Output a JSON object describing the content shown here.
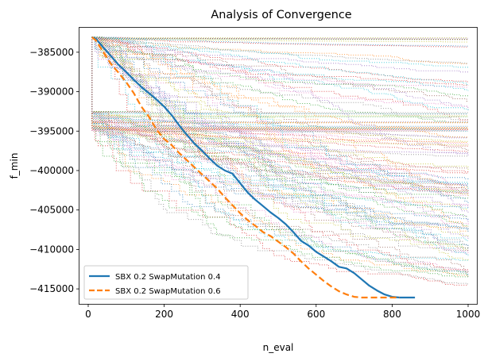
{
  "chart_data": {
    "type": "line",
    "title": "Analysis of Convergence",
    "xlabel": "n_eval",
    "ylabel": "f_min",
    "xlim": [
      -23,
      1023
    ],
    "ylim": [
      -416900,
      -381900
    ],
    "x_ticks": [
      0,
      200,
      400,
      600,
      800,
      1000
    ],
    "x_tick_labels": [
      "0",
      "200",
      "400",
      "600",
      "800",
      "1000"
    ],
    "y_ticks": [
      -385000,
      -390000,
      -395000,
      -400000,
      -405000,
      -410000,
      -415000
    ],
    "y_tick_labels": [
      "−385000",
      "−390000",
      "−395000",
      "−400000",
      "−405000",
      "−410000",
      "−415000"
    ],
    "grid": false,
    "legend_position": "lower-left",
    "series": [
      {
        "name": "SBX 0.2 SwapMutation 0.4",
        "color": "#1f77b4",
        "style": "solid",
        "x": [
          10,
          20,
          40,
          60,
          80,
          100,
          120,
          140,
          160,
          180,
          200,
          220,
          240,
          260,
          280,
          300,
          320,
          340,
          360,
          380,
          400,
          420,
          440,
          460,
          480,
          500,
          520,
          540,
          560,
          580,
          600,
          620,
          640,
          660,
          680,
          700,
          720,
          740,
          760,
          780,
          800,
          820,
          840,
          860
        ],
        "y": [
          -383100,
          -383300,
          -384400,
          -385500,
          -386600,
          -387500,
          -388500,
          -389400,
          -390200,
          -391000,
          -391900,
          -393000,
          -394300,
          -395500,
          -396600,
          -397500,
          -398500,
          -399400,
          -400000,
          -400400,
          -401600,
          -402800,
          -403700,
          -404500,
          -405300,
          -406000,
          -406800,
          -407800,
          -408900,
          -409500,
          -410300,
          -410900,
          -411500,
          -412200,
          -412400,
          -413000,
          -413800,
          -414600,
          -415200,
          -415700,
          -416000,
          -416100,
          -416100,
          -416100
        ]
      },
      {
        "name": "SBX 0.2 SwapMutation 0.6",
        "color": "#ff7f0e",
        "style": "dashed",
        "x": [
          10,
          20,
          40,
          60,
          80,
          100,
          120,
          140,
          160,
          180,
          200,
          220,
          240,
          260,
          280,
          300,
          320,
          340,
          360,
          380,
          400,
          420,
          440,
          460,
          480,
          500,
          520,
          540,
          560,
          580,
          600,
          620,
          640,
          660,
          680,
          700,
          720,
          740,
          760,
          780,
          800,
          820
        ],
        "y": [
          -383100,
          -383500,
          -385000,
          -386500,
          -387600,
          -388800,
          -390200,
          -391900,
          -393200,
          -394800,
          -396000,
          -396800,
          -397800,
          -398700,
          -399600,
          -400500,
          -401400,
          -402300,
          -403400,
          -404400,
          -405400,
          -406300,
          -407000,
          -407800,
          -408300,
          -409000,
          -409700,
          -410500,
          -411500,
          -412400,
          -413200,
          -414000,
          -414700,
          -415300,
          -415700,
          -416000,
          -416100,
          -416100,
          -416100,
          -416100,
          -416100,
          -416100
        ]
      }
    ]
  }
}
